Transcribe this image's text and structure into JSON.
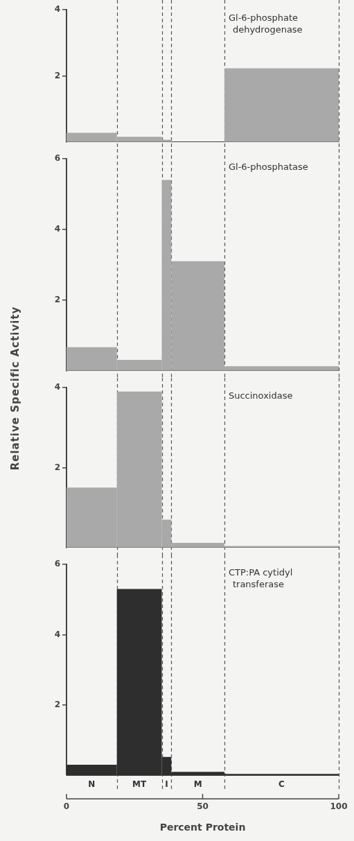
{
  "chart_data": [
    {
      "type": "histogram",
      "title": "Gl-6-phosphate dehydrogenase",
      "bins": [
        0,
        18.5,
        35,
        38.5,
        58,
        100
      ],
      "values": [
        0.28,
        0.16,
        0.07,
        0,
        2.23
      ],
      "color": "#a9a9a9",
      "xlim": [
        0,
        100
      ],
      "xticks": [
        0,
        50,
        100
      ],
      "ylim": [
        0,
        4
      ],
      "yticks": [
        2,
        4
      ],
      "grid": false,
      "legend": false,
      "tick_labels": "y"
    },
    {
      "type": "histogram",
      "title": "Gl-6-phosphatase",
      "ylabel": "Relative Specific Activity",
      "bins": [
        0,
        18.5,
        35,
        38.5,
        58,
        100
      ],
      "values": [
        0.67,
        0.31,
        5.4,
        3.1,
        0.13
      ],
      "color": "#a9a9a9",
      "xlim": [
        0,
        100
      ],
      "xticks": [
        0,
        50,
        100
      ],
      "ylim": [
        0,
        6
      ],
      "yticks": [
        2,
        4,
        6
      ],
      "grid": false,
      "legend": false,
      "tick_labels": "y"
    },
    {
      "type": "histogram",
      "title": "Succinoxidase",
      "bins": [
        0,
        18.5,
        35,
        38.5,
        58,
        100
      ],
      "values": [
        1.5,
        3.9,
        0.7,
        0.12,
        0.04
      ],
      "color": "#a9a9a9",
      "xlim": [
        0,
        100
      ],
      "xticks": [
        0,
        50,
        100
      ],
      "ylim": [
        0,
        4
      ],
      "yticks": [
        2,
        4
      ],
      "grid": false,
      "legend": false,
      "tick_labels": "y"
    },
    {
      "type": "histogram",
      "title": "CTP:PA cytidyl transferase",
      "xlabel": "Percent Protein",
      "bins": [
        0,
        18.5,
        35,
        38.5,
        58,
        100
      ],
      "values": [
        0.3,
        5.3,
        0.52,
        0.1,
        0.04
      ],
      "color": "#2e2e2e",
      "xlim": [
        0,
        100
      ],
      "xticks": [
        0,
        50,
        100
      ],
      "ylim": [
        0,
        6
      ],
      "yticks": [
        2,
        4,
        6
      ],
      "grid": false,
      "legend": false,
      "annotations": [
        "N",
        "MT",
        "I",
        "M",
        "C"
      ]
    }
  ]
}
